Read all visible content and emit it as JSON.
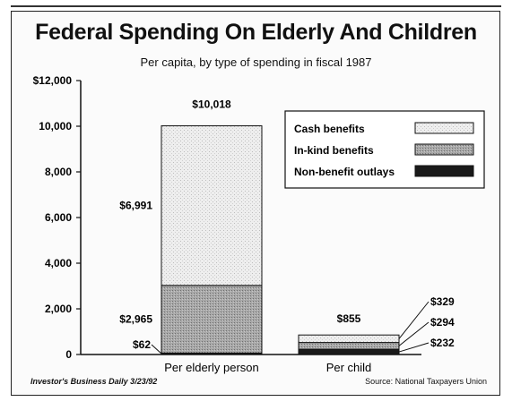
{
  "chart_data": {
    "type": "bar",
    "stacked": true,
    "title": "Federal Spending On Elderly And Children",
    "subtitle": "Per capita, by type of spending in fiscal 1987",
    "categories": [
      "Per elderly person",
      "Per child"
    ],
    "series": [
      {
        "name": "Non-benefit outlays",
        "values": [
          62,
          232
        ],
        "value_labels": [
          "$62",
          "$232"
        ],
        "color": "#1a1a1a"
      },
      {
        "name": "In-kind benefits",
        "values": [
          2965,
          294
        ],
        "value_labels": [
          "$2,965",
          "$294"
        ],
        "color": "#a9a9a9"
      },
      {
        "name": "Cash benefits",
        "values": [
          6991,
          329
        ],
        "value_labels": [
          "$6,991",
          "$329"
        ],
        "color": "#ececec"
      }
    ],
    "totals": [
      "$10,018",
      "$855"
    ],
    "ylim": [
      0,
      12000
    ],
    "yticks": [
      0,
      2000,
      4000,
      6000,
      8000,
      10000,
      12000
    ],
    "ytick_labels": [
      "0",
      "2,000",
      "4,000",
      "6,000",
      "8,000",
      "10,000",
      "$12,000"
    ],
    "legend_position": "top-right",
    "grid": false
  },
  "credit": "Investor's Business Daily 3/23/92",
  "source": "Source: National Taxpayers Union"
}
